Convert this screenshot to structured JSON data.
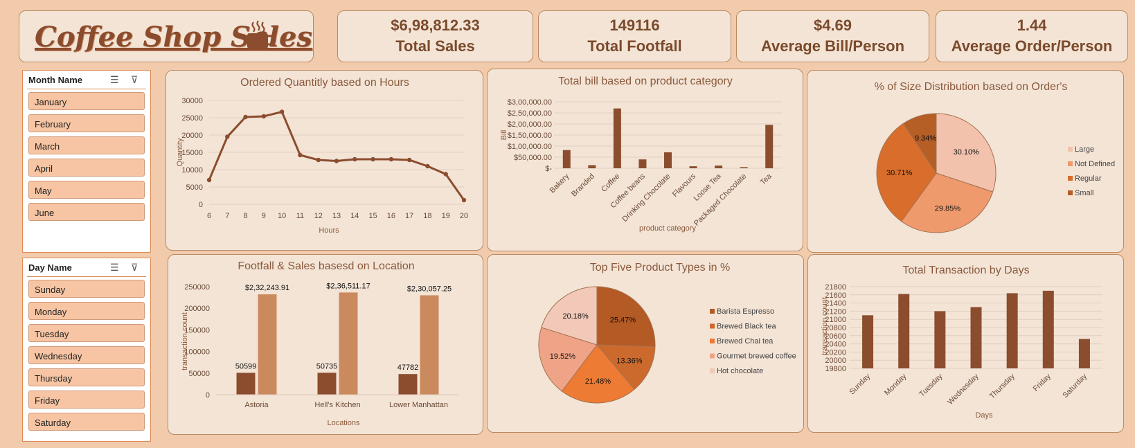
{
  "title": "Coffee Shop Sales",
  "kpis": [
    {
      "value": "$6,98,812.33",
      "label": "Total Sales"
    },
    {
      "value": "149116",
      "label": "Total Footfall"
    },
    {
      "value": "$4.69",
      "label": "Average Bill/Person"
    },
    {
      "value": "1.44",
      "label": "Average Order/Person"
    }
  ],
  "month_slicer": {
    "header": "Month Name",
    "items": [
      "January",
      "February",
      "March",
      "April",
      "May",
      "June"
    ]
  },
  "day_slicer": {
    "header": "Day Name",
    "items": [
      "Sunday",
      "Monday",
      "Tuesday",
      "Wednesday",
      "Thursday",
      "Friday",
      "Saturday"
    ]
  },
  "icons": {
    "title": "coffee-cup-icon",
    "multi_select": "multi-select-icon",
    "clear_filter": "clear-filter-icon"
  },
  "colors": {
    "dark": "#8b4d2e",
    "medium": "#cb8a5e",
    "accent": "#c0622b",
    "background": "#f1cbab",
    "panel": "#f3e4d6"
  },
  "chart_data": [
    {
      "id": "hours",
      "type": "line",
      "title": "Ordered Quantitly based on Hours",
      "xlabel": "Hours",
      "ylabel": "Quantity",
      "x": [
        6,
        7,
        8,
        9,
        10,
        11,
        12,
        13,
        14,
        15,
        16,
        17,
        18,
        19,
        20
      ],
      "values": [
        7000,
        19500,
        25200,
        25400,
        26700,
        14200,
        12800,
        12500,
        13000,
        13000,
        13000,
        12800,
        11000,
        8700,
        1200
      ],
      "ylim": [
        0,
        30000
      ],
      "yticks": [
        "0",
        "5000",
        "10000",
        "15000",
        "20000",
        "25000",
        "30000"
      ]
    },
    {
      "id": "category",
      "type": "bar",
      "title": "Total bill based on product category",
      "xlabel": "product category",
      "ylabel": "Bill",
      "categories": [
        "Bakery",
        "Branded",
        "Coffee",
        "Coffee beans",
        "Drinking Chocolate",
        "Flavours",
        "Loose Tea",
        "Packaged Chocolate",
        "Tea"
      ],
      "values": [
        82000,
        14000,
        270000,
        40000,
        72000,
        9000,
        12000,
        5000,
        196000
      ],
      "ylim": [
        0,
        300000
      ],
      "yticks": [
        "$-",
        "$50,000.00",
        "$1,00,000.00",
        "$1,50,000.00",
        "$2,00,000.00",
        "$2,50,000.00",
        "$3,00,000.00"
      ]
    },
    {
      "id": "size",
      "type": "pie",
      "title": "% of Size Distribution based on Order's",
      "labels": [
        "Large",
        "Not Defined",
        "Regular",
        "Small"
      ],
      "values": [
        30.1,
        29.85,
        30.71,
        9.34
      ],
      "value_labels": [
        "30.10%",
        "29.85%",
        "30.71%",
        "9.34%"
      ],
      "colors": [
        "#f2c2ad",
        "#ef9a6d",
        "#d96d2b",
        "#b55e25"
      ]
    },
    {
      "id": "location",
      "type": "bar",
      "title": "Footfall & Sales basesd on Location",
      "xlabel": "Locations",
      "ylabel": "transaction count",
      "categories": [
        "Astoria",
        "Hell's Kitchen",
        "Lower Manhattan"
      ],
      "series": [
        {
          "values": [
            50599,
            50735,
            47782
          ],
          "labels": [
            "50599",
            "50735",
            "47782"
          ]
        },
        {
          "values": [
            232243.91,
            236511.17,
            230057.25
          ],
          "labels": [
            "$2,32,243.91",
            "$2,36,511.17",
            "$2,30,057.25"
          ]
        }
      ],
      "ylim": [
        0,
        250000
      ],
      "yticks": [
        "0",
        "50000",
        "100000",
        "150000",
        "200000",
        "250000"
      ]
    },
    {
      "id": "products",
      "type": "pie",
      "title": "Top Five Product Types in %",
      "labels": [
        "Barista Espresso",
        "Brewed Black tea",
        "Brewed Chai tea",
        "Gourmet brewed coffee",
        "Hot chocolate"
      ],
      "values": [
        25.47,
        13.36,
        21.48,
        19.52,
        20.18
      ],
      "value_labels": [
        "25.47%",
        "13.36%",
        "21.48%",
        "19.52%",
        "20.18%"
      ],
      "colors": [
        "#b45a24",
        "#cc6a2e",
        "#ee7b33",
        "#f0a487",
        "#f2c8b8"
      ]
    },
    {
      "id": "days",
      "type": "bar",
      "title": "Total Transaction by Days",
      "xlabel": "Days",
      "ylabel": "transaction count",
      "categories": [
        "Sunday",
        "Monday",
        "Tuesday",
        "Wednesday",
        "Thursday",
        "Friday",
        "Saturday"
      ],
      "values": [
        21100,
        21620,
        21200,
        21300,
        21640,
        21700,
        20520
      ],
      "ylim": [
        19800,
        21800
      ],
      "yticks": [
        "19800",
        "20000",
        "20200",
        "20400",
        "20600",
        "20800",
        "21000",
        "21200",
        "21400",
        "21600",
        "21800"
      ]
    }
  ]
}
